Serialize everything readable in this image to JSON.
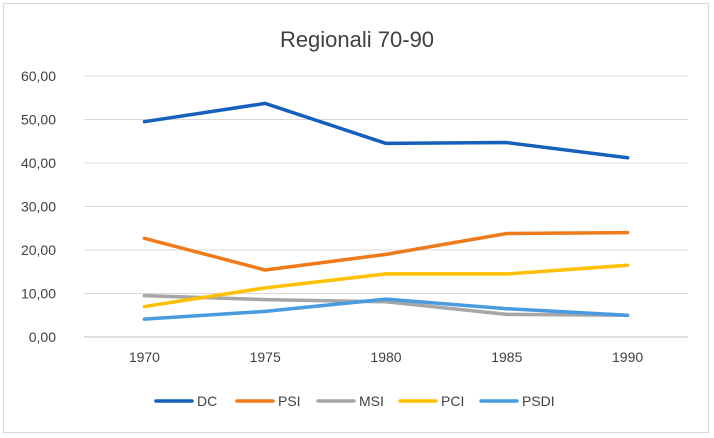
{
  "chart_data": {
    "type": "line",
    "title": "Regionali 70-90",
    "categories": [
      "1970",
      "1975",
      "1980",
      "1985",
      "1990"
    ],
    "ylim": [
      0,
      60
    ],
    "yticks": [
      "0,00",
      "10,00",
      "20,00",
      "30,00",
      "40,00",
      "50,00",
      "60,00"
    ],
    "grid": true,
    "legend_position": "bottom",
    "series": [
      {
        "name": "DC",
        "color": "#1560BD",
        "values": [
          49.5,
          53.7,
          44.5,
          44.7,
          41.2
        ]
      },
      {
        "name": "PSI",
        "color": "#F07A1A",
        "values": [
          22.7,
          15.4,
          19.0,
          23.8,
          24.0
        ]
      },
      {
        "name": "MSI",
        "color": "#A6A6A6",
        "values": [
          9.5,
          8.6,
          8.1,
          5.2,
          5.0
        ]
      },
      {
        "name": "PCI",
        "color": "#FFC000",
        "values": [
          7.0,
          11.3,
          14.5,
          14.5,
          16.5
        ]
      },
      {
        "name": "PSDI",
        "color": "#4A9AE0",
        "values": [
          4.1,
          5.9,
          8.7,
          6.5,
          5.0
        ]
      }
    ]
  }
}
